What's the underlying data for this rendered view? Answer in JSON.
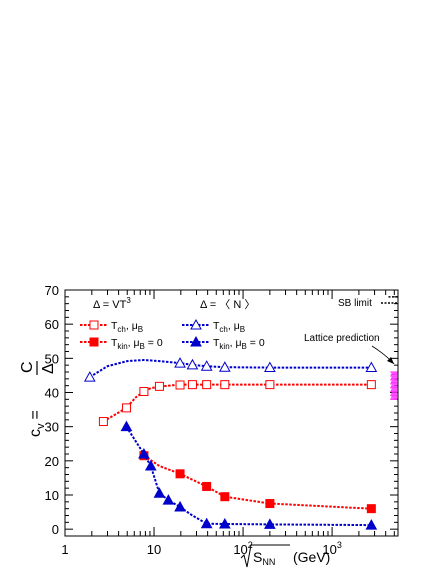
{
  "chart_data": {
    "type": "line",
    "xscale": "log",
    "xlim": [
      1,
      5500
    ],
    "ylim": [
      -2,
      70
    ],
    "xlabel": "(GeV)",
    "xlabel_sqrt": "S",
    "xlabel_sub": "NN",
    "ylabel": {
      "lhs_main": "c",
      "lhs_sub": "v",
      "eq": "=",
      "num": "C",
      "den": "Δ"
    },
    "x_ticks": [
      {
        "v": 1,
        "label": "1"
      },
      {
        "v": 10,
        "label": "10"
      },
      {
        "v": 100,
        "label": "10",
        "sup": "2"
      },
      {
        "v": 1000,
        "label": "10",
        "sup": "3"
      }
    ],
    "y_ticks": [
      0,
      10,
      20,
      30,
      40,
      50,
      60,
      70
    ],
    "legend": {
      "header_left": "Δ = VT",
      "header_left_sup": "3",
      "header_right": "Δ = 〈 N 〉",
      "entries": [
        {
          "series": 0,
          "T": "T",
          "sub": "ch",
          "rest": ", μ",
          "rest_sub": "B",
          "tail": ""
        },
        {
          "series": 1,
          "T": "T",
          "sub": "kin",
          "rest": ", μ",
          "rest_sub": "B",
          "tail": " = 0"
        },
        {
          "series": 2,
          "T": "T",
          "sub": "ch",
          "rest": ", μ",
          "rest_sub": "B",
          "tail": ""
        },
        {
          "series": 3,
          "T": "T",
          "sub": "kin",
          "rest": ", μ",
          "rest_sub": "B",
          "tail": " = 0"
        }
      ]
    },
    "annotations": {
      "sb_limit": "SB limit",
      "lattice": "Lattice prediction"
    },
    "sb_limit_value": 68,
    "lattice_band": {
      "x": [
        4500,
        5400
      ],
      "y": [
        38,
        46
      ],
      "color": "#ff33ff"
    },
    "series": [
      {
        "color": "#ff0000",
        "marker": "open-square",
        "x": [
          2.7,
          4.9,
          6.2,
          7.7,
          9.2,
          12.3,
          17.3,
          22,
          27,
          39,
          62.4,
          200,
          2760
        ],
        "y": [
          31.5,
          35.5,
          38.5,
          40.3,
          41.3,
          41.8,
          42.2,
          42.3,
          42.3,
          42.3,
          42.3,
          42.3,
          42.3
        ],
        "markers_x": [
          2.7,
          4.9,
          7.7,
          11.5,
          19.6,
          27,
          39,
          62.4,
          200,
          2760
        ],
        "markers_y": [
          31.5,
          35.5,
          40.3,
          41.8,
          42.2,
          42.3,
          42.3,
          42.3,
          42.3,
          42.3
        ]
      },
      {
        "color": "#ff0000",
        "marker": "filled-square",
        "x": [
          7.7,
          11.5,
          19.6,
          39,
          62.4,
          200,
          2760
        ],
        "y": [
          21.5,
          18.5,
          16.2,
          12.5,
          9.5,
          7.5,
          6.0
        ],
        "markers_x": [
          7.7,
          19.6,
          39,
          62.4,
          200,
          2760
        ],
        "markers_y": [
          21.5,
          16.2,
          12.5,
          9.5,
          7.5,
          6.0
        ]
      },
      {
        "color": "#0000cc",
        "marker": "open-triangle",
        "x": [
          1.9,
          3,
          5,
          7.7,
          11.5,
          19.6,
          27,
          39,
          62.4,
          200,
          2760
        ],
        "y": [
          44.5,
          47.7,
          49.2,
          49.5,
          49.2,
          48.6,
          48.1,
          47.7,
          47.4,
          47.3,
          47.3
        ],
        "markers_x": [
          1.9,
          19.6,
          27,
          39,
          62.4,
          200,
          2760
        ],
        "markers_y": [
          44.5,
          48.6,
          48.1,
          47.7,
          47.4,
          47.3,
          47.3
        ]
      },
      {
        "color": "#0000cc",
        "marker": "filled-triangle",
        "x": [
          4.9,
          7.7,
          9.2,
          11.5,
          14.5,
          19.6,
          27,
          39,
          62.4,
          200,
          2760
        ],
        "y": [
          30,
          22,
          18.5,
          10.5,
          8.5,
          6.5,
          4,
          1.6,
          1.5,
          1.4,
          1.2
        ],
        "markers_x": [
          4.9,
          7.7,
          9.2,
          11.5,
          14.5,
          19.6,
          39,
          62.4,
          200,
          2760
        ],
        "markers_y": [
          30,
          22,
          18.5,
          10.5,
          8.5,
          6.5,
          1.6,
          1.5,
          1.4,
          1.2
        ]
      }
    ]
  }
}
